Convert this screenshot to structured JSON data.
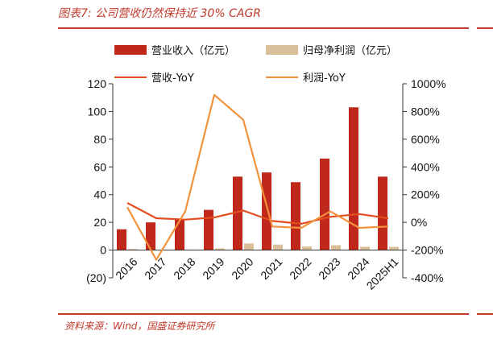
{
  "figure": {
    "title": "图表7:  公司营收仍然保持近 30% CAGR",
    "source": "资料来源：Wind，国盛证券研究所"
  },
  "colors": {
    "revenue_bar": "#c0281c",
    "profit_bar": "#d9bf9a",
    "revenue_yoy_line": "#e34d1f",
    "profit_yoy_line": "#f3923c",
    "accent": "#c0392b"
  },
  "chart_data": {
    "type": "bar",
    "categories": [
      "2016",
      "2017",
      "2018",
      "2019",
      "2020",
      "2021",
      "2022",
      "2023",
      "2024",
      "2025H1"
    ],
    "series": [
      {
        "name": "营业收入（亿元）",
        "type": "bar",
        "axis": "left",
        "values": [
          15,
          20,
          22,
          29,
          53,
          56,
          49,
          66,
          103,
          53
        ]
      },
      {
        "name": "归母净利润（亿元）",
        "type": "bar",
        "axis": "left",
        "values": [
          0.8,
          -0.3,
          0.3,
          1.2,
          4.8,
          4.0,
          2.6,
          3.5,
          2.4,
          2.3
        ]
      },
      {
        "name": "营收-YoY",
        "type": "line",
        "axis": "right",
        "values": [
          140,
          30,
          20,
          35,
          85,
          10,
          -10,
          40,
          60,
          30
        ]
      },
      {
        "name": "利润-YoY",
        "type": "line",
        "axis": "right",
        "values": [
          110,
          -270,
          80,
          920,
          740,
          -30,
          -40,
          80,
          -40,
          -30
        ]
      }
    ],
    "left_axis": {
      "min": -20,
      "max": 120,
      "ticks": [
        "(20)",
        "0",
        "20",
        "40",
        "60",
        "80",
        "100",
        "120"
      ]
    },
    "right_axis": {
      "min": -400,
      "max": 1000,
      "ticks": [
        "-400%",
        "-200%",
        "0%",
        "200%",
        "400%",
        "600%",
        "800%",
        "1000%"
      ]
    },
    "legend": {
      "placement": "top",
      "columns": 2
    },
    "grid": false
  }
}
